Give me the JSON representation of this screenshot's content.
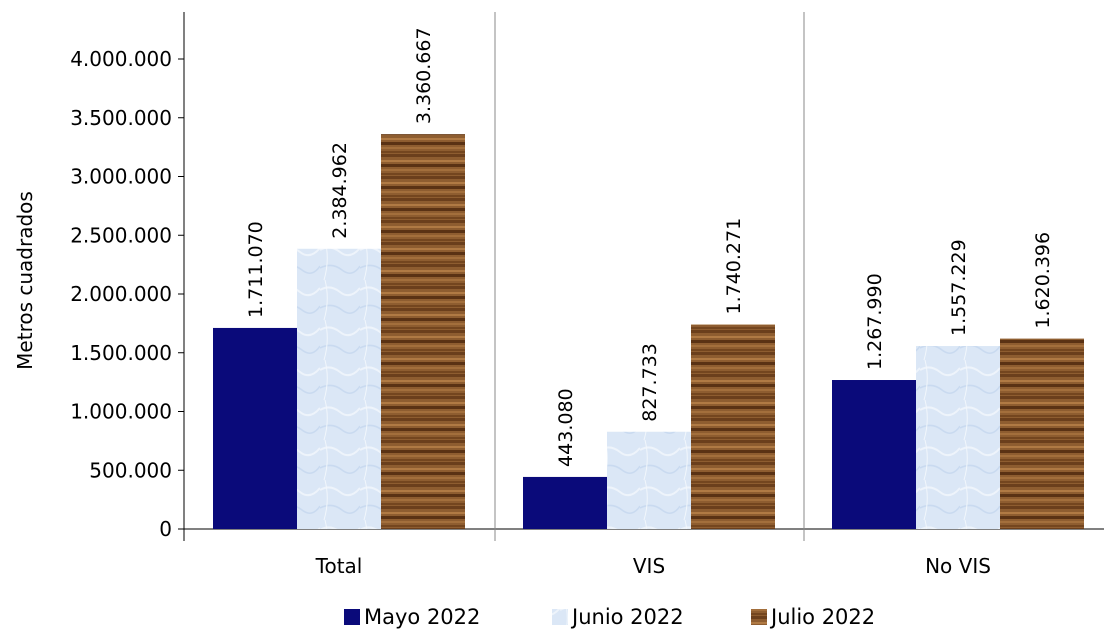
{
  "chart_data": {
    "type": "bar",
    "title": "",
    "xlabel": "",
    "ylabel": "Metros cuadrados",
    "ylim": [
      0,
      4000000
    ],
    "y_ticks": [
      0,
      500000,
      1000000,
      1500000,
      2000000,
      2500000,
      3000000,
      3500000,
      4000000
    ],
    "y_tick_labels": [
      "0",
      "500.000",
      "1.000.000",
      "1.500.000",
      "2.000.000",
      "2.500.000",
      "3.000.000",
      "3.500.000",
      "4.000.000"
    ],
    "categories": [
      "Total",
      "VIS",
      "No VIS"
    ],
    "series": [
      {
        "name": "Mayo 2022",
        "values": [
          1711070,
          443080,
          1267990
        ],
        "labels": [
          "1.711.070",
          "443.080",
          "1.267.990"
        ],
        "color": "#0a0a7a"
      },
      {
        "name": "Junio 2022",
        "values": [
          2384962,
          827733,
          1557229
        ],
        "labels": [
          "2.384.962",
          "827.733",
          "1.557.229"
        ],
        "color": "#d9e6f5"
      },
      {
        "name": "Julio 2022",
        "values": [
          3360667,
          1740271,
          1620396
        ],
        "labels": [
          "3.360.667",
          "1.740.271",
          "1.620.396"
        ],
        "color": "#8a5a2e"
      }
    ],
    "grid": false,
    "legend_position": "bottom"
  }
}
